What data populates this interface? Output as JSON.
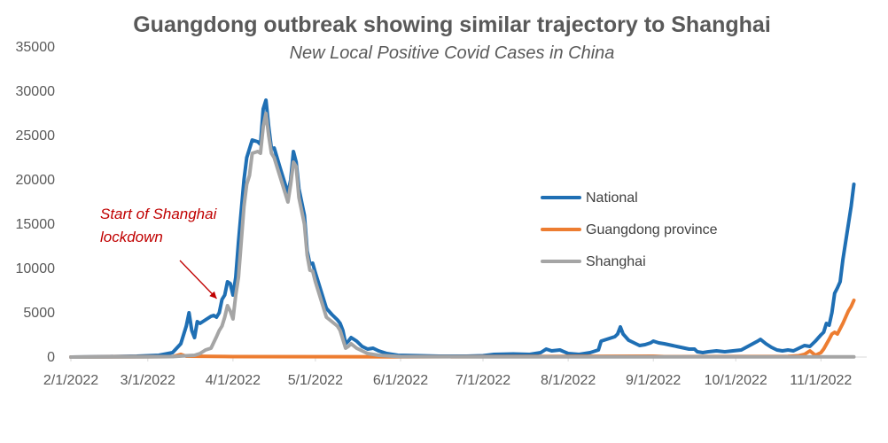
{
  "chart_data": {
    "type": "line",
    "title": "Guangdong outbreak showing similar trajectory to Shanghai",
    "subtitle": "New Local Positive Covid Cases in China",
    "xlabel": "",
    "ylabel": "",
    "ylim": [
      0,
      35000
    ],
    "y_ticks": [
      "0",
      "5000",
      "10000",
      "15000",
      "20000",
      "25000",
      "30000",
      "35000"
    ],
    "x_range": [
      "2022-02-01",
      "2022-11-20"
    ],
    "x_ticks": [
      {
        "date": "2022-02-01",
        "label": "2/1/2022"
      },
      {
        "date": "2022-03-01",
        "label": "3/1/2022"
      },
      {
        "date": "2022-04-01",
        "label": "4/1/2022"
      },
      {
        "date": "2022-05-01",
        "label": "5/1/2022"
      },
      {
        "date": "2022-06-01",
        "label": "6/1/2022"
      },
      {
        "date": "2022-07-01",
        "label": "7/1/2022"
      },
      {
        "date": "2022-08-01",
        "label": "8/1/2022"
      },
      {
        "date": "2022-09-01",
        "label": "9/1/2022"
      },
      {
        "date": "2022-10-01",
        "label": "10/1/2022"
      },
      {
        "date": "2022-11-01",
        "label": "11/1/2022"
      }
    ],
    "grid": false,
    "legend_position": "right",
    "annotation": {
      "lines": [
        "Start of Shanghai",
        "lockdown"
      ],
      "date": "2022-03-28",
      "value": 7000,
      "color": "#C00000"
    },
    "series": [
      {
        "name": "National",
        "color": "#1F6FB4",
        "points": [
          [
            "2022-02-01",
            0
          ],
          [
            "2022-02-15",
            50
          ],
          [
            "2022-02-25",
            100
          ],
          [
            "2022-03-01",
            150
          ],
          [
            "2022-03-05",
            200
          ],
          [
            "2022-03-10",
            500
          ],
          [
            "2022-03-13",
            1500
          ],
          [
            "2022-03-15",
            3500
          ],
          [
            "2022-03-16",
            5000
          ],
          [
            "2022-03-17",
            3000
          ],
          [
            "2022-03-18",
            2200
          ],
          [
            "2022-03-19",
            4000
          ],
          [
            "2022-03-20",
            3800
          ],
          [
            "2022-03-22",
            4200
          ],
          [
            "2022-03-24",
            4600
          ],
          [
            "2022-03-25",
            4700
          ],
          [
            "2022-03-26",
            4500
          ],
          [
            "2022-03-27",
            5000
          ],
          [
            "2022-03-28",
            6500
          ],
          [
            "2022-03-29",
            7000
          ],
          [
            "2022-03-30",
            8500
          ],
          [
            "2022-03-31",
            8300
          ],
          [
            "2022-04-01",
            7000
          ],
          [
            "2022-04-02",
            9000
          ],
          [
            "2022-04-03",
            13000
          ],
          [
            "2022-04-04",
            16500
          ],
          [
            "2022-04-05",
            20000
          ],
          [
            "2022-04-06",
            22500
          ],
          [
            "2022-04-07",
            23500
          ],
          [
            "2022-04-08",
            24500
          ],
          [
            "2022-04-10",
            24300
          ],
          [
            "2022-04-11",
            24000
          ],
          [
            "2022-04-12",
            28000
          ],
          [
            "2022-04-13",
            29000
          ],
          [
            "2022-04-14",
            26000
          ],
          [
            "2022-04-15",
            23500
          ],
          [
            "2022-04-16",
            23600
          ],
          [
            "2022-04-18",
            21500
          ],
          [
            "2022-04-20",
            19500
          ],
          [
            "2022-04-21",
            18500
          ],
          [
            "2022-04-22",
            20000
          ],
          [
            "2022-04-23",
            23200
          ],
          [
            "2022-04-24",
            22000
          ],
          [
            "2022-04-25",
            19000
          ],
          [
            "2022-04-27",
            16000
          ],
          [
            "2022-04-28",
            12000
          ],
          [
            "2022-04-29",
            10500
          ],
          [
            "2022-04-30",
            10600
          ],
          [
            "2022-05-01",
            9500
          ],
          [
            "2022-05-03",
            7500
          ],
          [
            "2022-05-05",
            5500
          ],
          [
            "2022-05-07",
            4800
          ],
          [
            "2022-05-09",
            4200
          ],
          [
            "2022-05-10",
            3800
          ],
          [
            "2022-05-11",
            3000
          ],
          [
            "2022-05-12",
            1500
          ],
          [
            "2022-05-13",
            1800
          ],
          [
            "2022-05-14",
            2200
          ],
          [
            "2022-05-16",
            1800
          ],
          [
            "2022-05-18",
            1200
          ],
          [
            "2022-05-20",
            900
          ],
          [
            "2022-05-22",
            1000
          ],
          [
            "2022-05-24",
            700
          ],
          [
            "2022-05-27",
            400
          ],
          [
            "2022-05-31",
            200
          ],
          [
            "2022-06-08",
            150
          ],
          [
            "2022-06-15",
            100
          ],
          [
            "2022-06-25",
            100
          ],
          [
            "2022-07-01",
            150
          ],
          [
            "2022-07-05",
            300
          ],
          [
            "2022-07-12",
            350
          ],
          [
            "2022-07-18",
            300
          ],
          [
            "2022-07-22",
            500
          ],
          [
            "2022-07-24",
            900
          ],
          [
            "2022-07-26",
            700
          ],
          [
            "2022-07-29",
            800
          ],
          [
            "2022-08-01",
            400
          ],
          [
            "2022-08-05",
            300
          ],
          [
            "2022-08-09",
            500
          ],
          [
            "2022-08-12",
            800
          ],
          [
            "2022-08-13",
            1800
          ],
          [
            "2022-08-15",
            2000
          ],
          [
            "2022-08-18",
            2300
          ],
          [
            "2022-08-19",
            2600
          ],
          [
            "2022-08-20",
            3400
          ],
          [
            "2022-08-21",
            2600
          ],
          [
            "2022-08-23",
            1900
          ],
          [
            "2022-08-25",
            1600
          ],
          [
            "2022-08-27",
            1300
          ],
          [
            "2022-08-29",
            1400
          ],
          [
            "2022-08-31",
            1600
          ],
          [
            "2022-09-01",
            1800
          ],
          [
            "2022-09-03",
            1600
          ],
          [
            "2022-09-05",
            1500
          ],
          [
            "2022-09-08",
            1300
          ],
          [
            "2022-09-11",
            1100
          ],
          [
            "2022-09-14",
            900
          ],
          [
            "2022-09-16",
            900
          ],
          [
            "2022-09-17",
            600
          ],
          [
            "2022-09-19",
            500
          ],
          [
            "2022-09-21",
            600
          ],
          [
            "2022-09-24",
            700
          ],
          [
            "2022-09-27",
            600
          ],
          [
            "2022-09-30",
            700
          ],
          [
            "2022-10-03",
            800
          ],
          [
            "2022-10-06",
            1300
          ],
          [
            "2022-10-09",
            1800
          ],
          [
            "2022-10-10",
            2000
          ],
          [
            "2022-10-12",
            1500
          ],
          [
            "2022-10-14",
            1100
          ],
          [
            "2022-10-16",
            800
          ],
          [
            "2022-10-18",
            700
          ],
          [
            "2022-10-20",
            800
          ],
          [
            "2022-10-22",
            700
          ],
          [
            "2022-10-24",
            1000
          ],
          [
            "2022-10-26",
            1300
          ],
          [
            "2022-10-28",
            1200
          ],
          [
            "2022-10-30",
            1800
          ],
          [
            "2022-11-01",
            2500
          ],
          [
            "2022-11-02",
            2800
          ],
          [
            "2022-11-03",
            3800
          ],
          [
            "2022-11-04",
            3600
          ],
          [
            "2022-11-05",
            5000
          ],
          [
            "2022-11-06",
            7200
          ],
          [
            "2022-11-07",
            7800
          ],
          [
            "2022-11-08",
            8500
          ],
          [
            "2022-11-09",
            11000
          ],
          [
            "2022-11-10",
            13000
          ],
          [
            "2022-11-11",
            15000
          ],
          [
            "2022-11-12",
            17000
          ],
          [
            "2022-11-13",
            19500
          ]
        ]
      },
      {
        "name": "Guangdong province",
        "color": "#ED7D31",
        "points": [
          [
            "2022-02-01",
            0
          ],
          [
            "2022-03-10",
            50
          ],
          [
            "2022-03-13",
            300
          ],
          [
            "2022-03-15",
            100
          ],
          [
            "2022-04-01",
            50
          ],
          [
            "2022-06-01",
            30
          ],
          [
            "2022-09-01",
            100
          ],
          [
            "2022-09-05",
            50
          ],
          [
            "2022-10-20",
            80
          ],
          [
            "2022-10-24",
            150
          ],
          [
            "2022-10-26",
            300
          ],
          [
            "2022-10-28",
            700
          ],
          [
            "2022-10-30",
            200
          ],
          [
            "2022-11-01",
            500
          ],
          [
            "2022-11-02",
            900
          ],
          [
            "2022-11-04",
            2000
          ],
          [
            "2022-11-05",
            2600
          ],
          [
            "2022-11-06",
            2800
          ],
          [
            "2022-11-07",
            2600
          ],
          [
            "2022-11-08",
            3200
          ],
          [
            "2022-11-09",
            3800
          ],
          [
            "2022-11-10",
            4500
          ],
          [
            "2022-11-11",
            5200
          ],
          [
            "2022-11-12",
            5700
          ],
          [
            "2022-11-13",
            6400
          ]
        ]
      },
      {
        "name": "Shanghai",
        "color": "#A5A5A5",
        "points": [
          [
            "2022-02-01",
            0
          ],
          [
            "2022-03-01",
            20
          ],
          [
            "2022-03-10",
            50
          ],
          [
            "2022-03-15",
            150
          ],
          [
            "2022-03-18",
            200
          ],
          [
            "2022-03-20",
            400
          ],
          [
            "2022-03-22",
            800
          ],
          [
            "2022-03-24",
            1000
          ],
          [
            "2022-03-26",
            2300
          ],
          [
            "2022-03-27",
            3000
          ],
          [
            "2022-03-28",
            3500
          ],
          [
            "2022-03-29",
            4500
          ],
          [
            "2022-03-30",
            5800
          ],
          [
            "2022-03-31",
            5200
          ],
          [
            "2022-04-01",
            4300
          ],
          [
            "2022-04-02",
            7000
          ],
          [
            "2022-04-03",
            9000
          ],
          [
            "2022-04-04",
            13000
          ],
          [
            "2022-04-05",
            17000
          ],
          [
            "2022-04-06",
            19500
          ],
          [
            "2022-04-07",
            20500
          ],
          [
            "2022-04-08",
            23000
          ],
          [
            "2022-04-10",
            23200
          ],
          [
            "2022-04-11",
            23000
          ],
          [
            "2022-04-12",
            26000
          ],
          [
            "2022-04-13",
            27500
          ],
          [
            "2022-04-14",
            25000
          ],
          [
            "2022-04-15",
            23000
          ],
          [
            "2022-04-16",
            22500
          ],
          [
            "2022-04-18",
            20500
          ],
          [
            "2022-04-20",
            18500
          ],
          [
            "2022-04-21",
            17500
          ],
          [
            "2022-04-22",
            19500
          ],
          [
            "2022-04-23",
            22000
          ],
          [
            "2022-04-24",
            21500
          ],
          [
            "2022-04-25",
            18000
          ],
          [
            "2022-04-27",
            15000
          ],
          [
            "2022-04-28",
            11500
          ],
          [
            "2022-04-29",
            9800
          ],
          [
            "2022-04-30",
            9700
          ],
          [
            "2022-05-01",
            8500
          ],
          [
            "2022-05-03",
            6500
          ],
          [
            "2022-05-05",
            4500
          ],
          [
            "2022-05-07",
            4000
          ],
          [
            "2022-05-09",
            3500
          ],
          [
            "2022-05-10",
            3000
          ],
          [
            "2022-05-11",
            2000
          ],
          [
            "2022-05-12",
            1000
          ],
          [
            "2022-05-13",
            1200
          ],
          [
            "2022-05-14",
            1500
          ],
          [
            "2022-05-16",
            1000
          ],
          [
            "2022-05-18",
            700
          ],
          [
            "2022-05-20",
            400
          ],
          [
            "2022-05-24",
            200
          ],
          [
            "2022-06-01",
            50
          ],
          [
            "2022-07-01",
            30
          ],
          [
            "2022-09-01",
            20
          ],
          [
            "2022-10-01",
            20
          ],
          [
            "2022-11-13",
            30
          ]
        ]
      }
    ]
  }
}
